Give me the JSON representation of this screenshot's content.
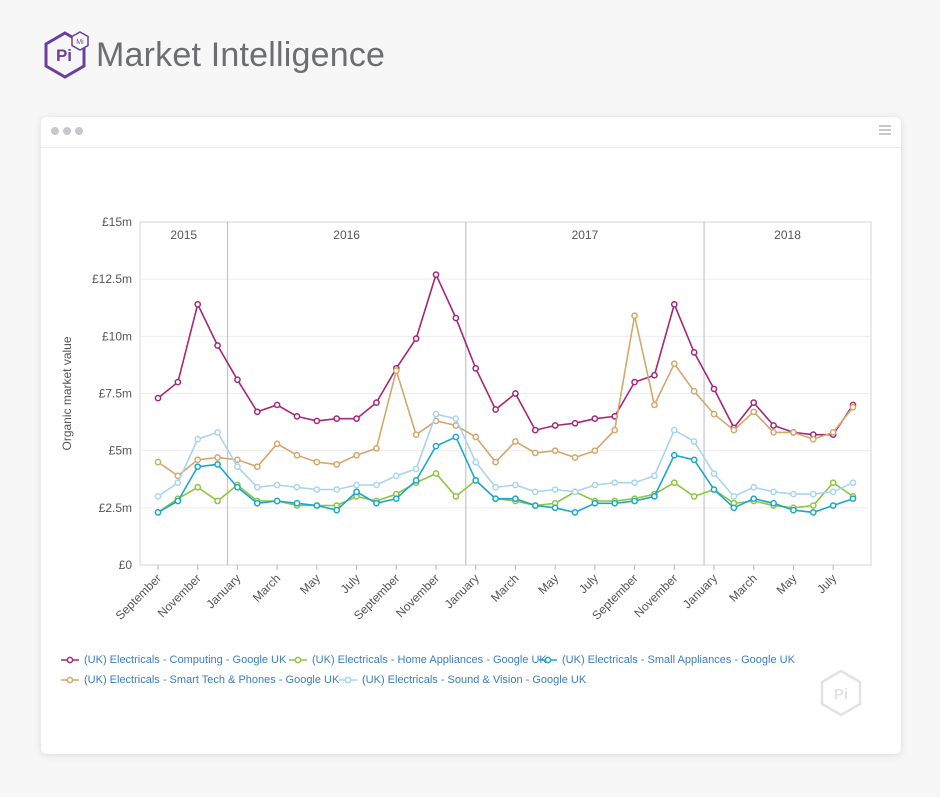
{
  "brand": {
    "logo_text": "Pi",
    "logo_badge": "Mi",
    "title": "Market Intelligence"
  },
  "window": {
    "dots_icon": "window-dots-icon",
    "menu_icon": "hamburger-menu-icon",
    "watermark_icon": "pi-watermark-icon"
  },
  "chart_data": {
    "type": "line",
    "ylabel": "Organic market value",
    "xlabel": "",
    "ylim": [
      0,
      15
    ],
    "y_unit": "£m",
    "y_ticks": [
      "£0",
      "£2.5m",
      "£5m",
      "£7.5m",
      "£10m",
      "£12.5m",
      "£15m"
    ],
    "y_tick_values": [
      0,
      2.5,
      5,
      7.5,
      10,
      12.5,
      15
    ],
    "grid": true,
    "legend_position": "bottom-left",
    "x": [
      "2015-09",
      "2015-10",
      "2015-11",
      "2015-12",
      "2016-01",
      "2016-02",
      "2016-03",
      "2016-04",
      "2016-05",
      "2016-06",
      "2016-07",
      "2016-08",
      "2016-09",
      "2016-10",
      "2016-11",
      "2016-12",
      "2017-01",
      "2017-02",
      "2017-03",
      "2017-04",
      "2017-05",
      "2017-06",
      "2017-07",
      "2017-08",
      "2017-09",
      "2017-10",
      "2017-11",
      "2017-12",
      "2018-01",
      "2018-02",
      "2018-03",
      "2018-04",
      "2018-05",
      "2018-06",
      "2018-07",
      "2018-08"
    ],
    "x_tick_labels": [
      {
        "month": "2015-09",
        "label": "September"
      },
      {
        "month": "2015-11",
        "label": "November"
      },
      {
        "month": "2016-01",
        "label": "January"
      },
      {
        "month": "2016-03",
        "label": "March"
      },
      {
        "month": "2016-05",
        "label": "May"
      },
      {
        "month": "2016-07",
        "label": "July"
      },
      {
        "month": "2016-09",
        "label": "September"
      },
      {
        "month": "2016-11",
        "label": "November"
      },
      {
        "month": "2017-01",
        "label": "January"
      },
      {
        "month": "2017-03",
        "label": "March"
      },
      {
        "month": "2017-05",
        "label": "May"
      },
      {
        "month": "2017-07",
        "label": "July"
      },
      {
        "month": "2017-09",
        "label": "September"
      },
      {
        "month": "2017-11",
        "label": "November"
      },
      {
        "month": "2018-01",
        "label": "January"
      },
      {
        "month": "2018-03",
        "label": "March"
      },
      {
        "month": "2018-05",
        "label": "May"
      },
      {
        "month": "2018-07",
        "label": "July"
      }
    ],
    "year_bands": [
      {
        "label": "2015",
        "start": "2015-09",
        "end": "2015-12"
      },
      {
        "label": "2016",
        "start": "2016-01",
        "end": "2016-12"
      },
      {
        "label": "2017",
        "start": "2017-01",
        "end": "2017-12"
      },
      {
        "label": "2018",
        "start": "2018-01",
        "end": "2018-08"
      }
    ],
    "series": [
      {
        "name": "(UK) Electricals - Computing - Google UK",
        "color": "#a3277a",
        "values": [
          7.3,
          8.0,
          11.4,
          9.6,
          8.1,
          6.7,
          7.0,
          6.5,
          6.3,
          6.4,
          6.4,
          7.1,
          8.6,
          9.9,
          12.7,
          10.8,
          8.6,
          6.8,
          7.5,
          5.9,
          6.1,
          6.2,
          6.4,
          6.5,
          8.0,
          8.3,
          11.4,
          9.3,
          7.7,
          6.0,
          7.1,
          6.1,
          5.8,
          5.7,
          5.7,
          7.0
        ]
      },
      {
        "name": "(UK) Electricals - Home Appliances - Google UK",
        "color": "#8cc63f",
        "values": [
          2.3,
          2.9,
          3.4,
          2.8,
          3.5,
          2.8,
          2.8,
          2.6,
          2.6,
          2.6,
          3.0,
          2.8,
          3.1,
          3.6,
          4.0,
          3.0,
          3.7,
          2.9,
          2.8,
          2.6,
          2.7,
          3.2,
          2.8,
          2.8,
          2.9,
          3.1,
          3.6,
          3.0,
          3.3,
          2.7,
          2.8,
          2.6,
          2.5,
          2.6,
          3.6,
          3.0
        ]
      },
      {
        "name": "(UK) Electricals - Small Appliances - Google UK",
        "color": "#1ba7cc",
        "values": [
          2.3,
          2.8,
          4.3,
          4.4,
          3.4,
          2.7,
          2.8,
          2.7,
          2.6,
          2.4,
          3.2,
          2.7,
          2.9,
          3.7,
          5.2,
          5.6,
          3.7,
          2.9,
          2.9,
          2.6,
          2.5,
          2.3,
          2.7,
          2.7,
          2.8,
          3.0,
          4.8,
          4.6,
          3.3,
          2.5,
          2.9,
          2.7,
          2.4,
          2.3,
          2.6,
          2.9
        ]
      },
      {
        "name": "(UK) Electricals - Smart Tech & Phones - Google UK",
        "color": "#d4a76a",
        "values": [
          4.5,
          3.9,
          4.6,
          4.7,
          4.6,
          4.3,
          5.3,
          4.8,
          4.5,
          4.4,
          4.8,
          5.1,
          8.5,
          5.7,
          6.3,
          6.1,
          5.6,
          4.5,
          5.4,
          4.9,
          5.0,
          4.7,
          5.0,
          5.9,
          10.9,
          7.0,
          8.8,
          7.6,
          6.6,
          5.9,
          6.7,
          5.8,
          5.8,
          5.5,
          5.8,
          6.9
        ]
      },
      {
        "name": "(UK) Electricals - Sound & Vision - Google UK",
        "color": "#a9d4f0",
        "values": [
          3.0,
          3.6,
          5.5,
          5.8,
          4.3,
          3.4,
          3.5,
          3.4,
          3.3,
          3.3,
          3.5,
          3.5,
          3.9,
          4.2,
          6.6,
          6.4,
          4.5,
          3.4,
          3.5,
          3.2,
          3.3,
          3.2,
          3.5,
          3.6,
          3.6,
          3.9,
          5.9,
          5.4,
          4.0,
          3.0,
          3.4,
          3.2,
          3.1,
          3.1,
          3.2,
          3.6
        ]
      }
    ]
  }
}
